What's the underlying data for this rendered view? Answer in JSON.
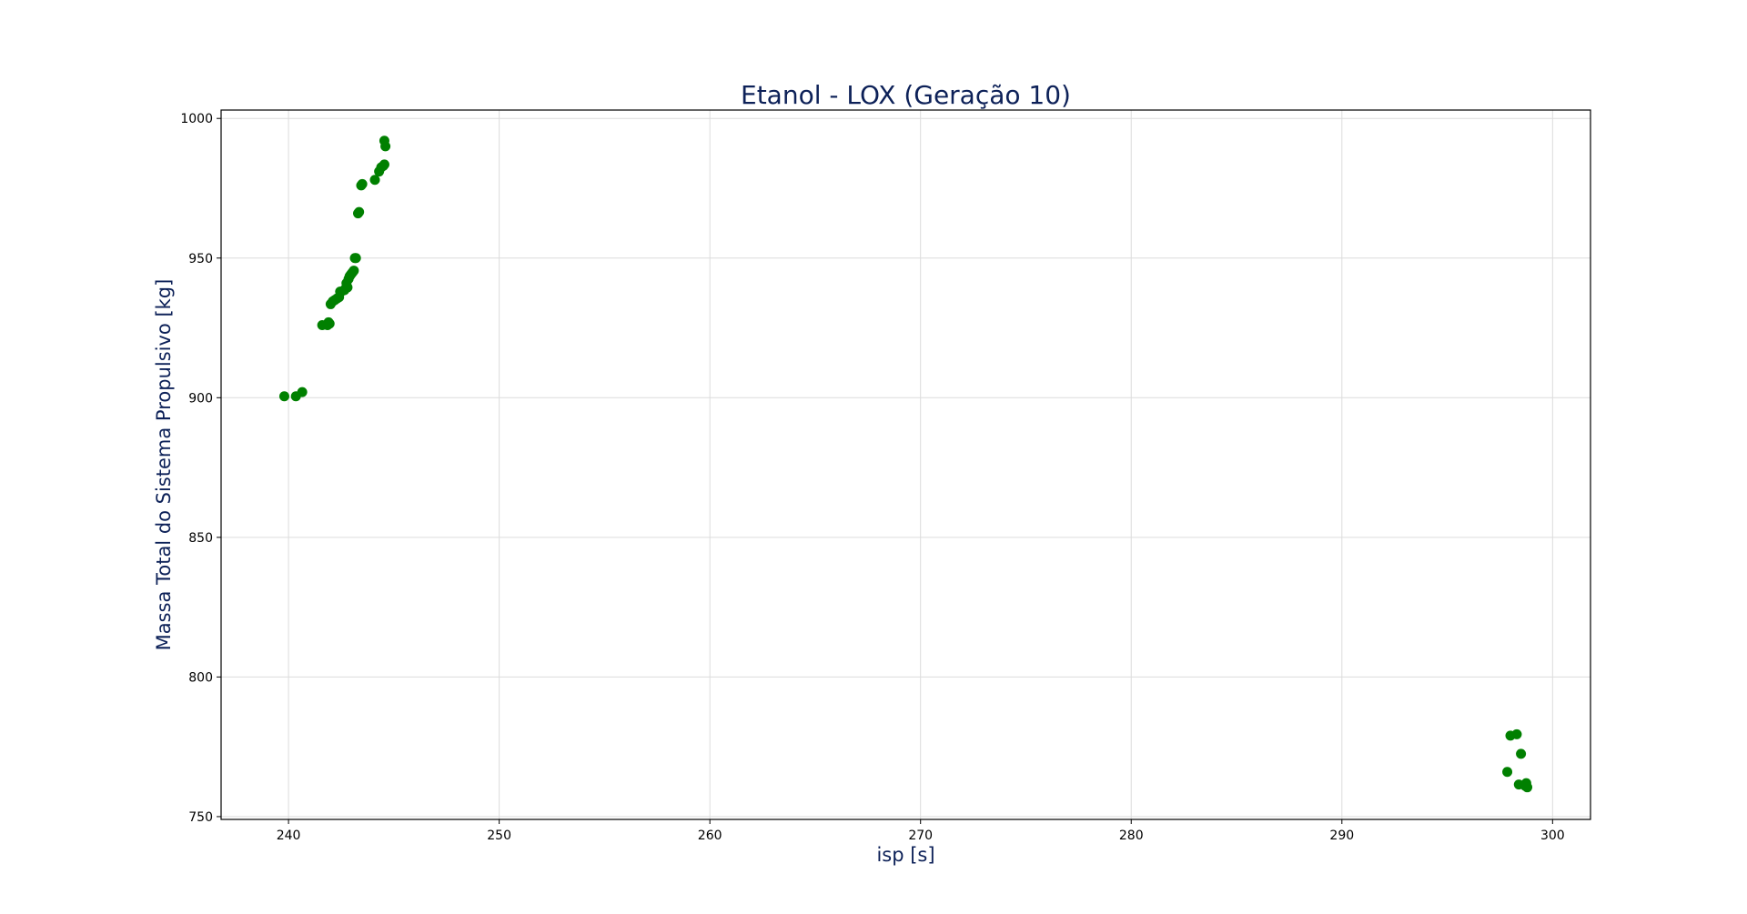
{
  "colors": {
    "points": "#008000",
    "title": "#0d2158",
    "grid": "#dcdcdc",
    "axes": "#000000"
  },
  "chart_data": {
    "type": "scatter",
    "title": "Etanol - LOX (Geração 10)",
    "xlabel": "isp [s]",
    "ylabel": "Massa Total do Sistema Propulsivo [kg]",
    "xlim": [
      236.8,
      301.8
    ],
    "ylim": [
      749,
      1003
    ],
    "xticks": [
      240,
      250,
      260,
      270,
      280,
      290,
      300
    ],
    "yticks": [
      750,
      800,
      850,
      900,
      950,
      1000
    ],
    "grid": true,
    "legend": "none",
    "series": [
      {
        "x": [
          239.8,
          240.35,
          240.65,
          241.6,
          241.85,
          241.95,
          241.9,
          242.0,
          242.1,
          242.2,
          242.3,
          242.4,
          242.45,
          242.5,
          242.65,
          242.7,
          242.8,
          242.75,
          242.85,
          242.9,
          242.95,
          243.0,
          243.05,
          243.1,
          243.15,
          243.2,
          243.3,
          243.35,
          243.45,
          243.5,
          244.1,
          244.3,
          244.4,
          244.5,
          244.55,
          244.6,
          244.55,
          297.85,
          298.0,
          298.3,
          298.4,
          298.5,
          298.7,
          298.75,
          298.8
        ],
        "y": [
          900.5,
          900.5,
          902,
          926,
          926,
          926.5,
          927,
          933.5,
          934.5,
          935,
          935.5,
          936,
          938,
          938,
          938.5,
          939,
          939.5,
          941,
          942.5,
          943.5,
          944,
          944.5,
          945,
          945.5,
          950,
          950,
          966,
          966.5,
          976,
          976.5,
          978,
          981,
          982.5,
          983,
          983.5,
          990,
          992,
          766,
          779,
          779.5,
          761.5,
          772.5,
          761,
          762,
          760.5
        ]
      }
    ]
  }
}
